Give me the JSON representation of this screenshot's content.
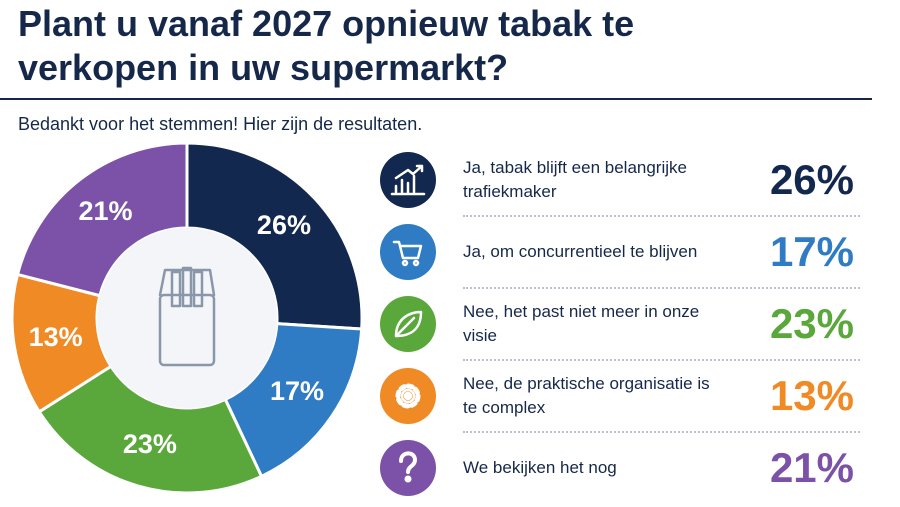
{
  "chart_data": {
    "type": "pie",
    "title": "Plant u vanaf 2027 opnieuw tabak te verkopen in uw supermarkt?",
    "subtitle": "Bedankt voor het stemmen! Hier zijn de resultaten.",
    "categories": [
      "Ja, tabak blijft een belangrijke trafiekmaker",
      "Ja, om concurrentieel te blijven",
      "Nee, het past niet meer in onze visie",
      "Nee, de praktische organisatie is te complex",
      "We bekijken het nog"
    ],
    "values": [
      26,
      17,
      23,
      13,
      21
    ],
    "value_labels": [
      "26%",
      "17%",
      "23%",
      "13%",
      "21%"
    ],
    "colors": [
      "#13284f",
      "#2f7cc5",
      "#5aa83c",
      "#f08a24",
      "#7b52a8"
    ]
  }
}
